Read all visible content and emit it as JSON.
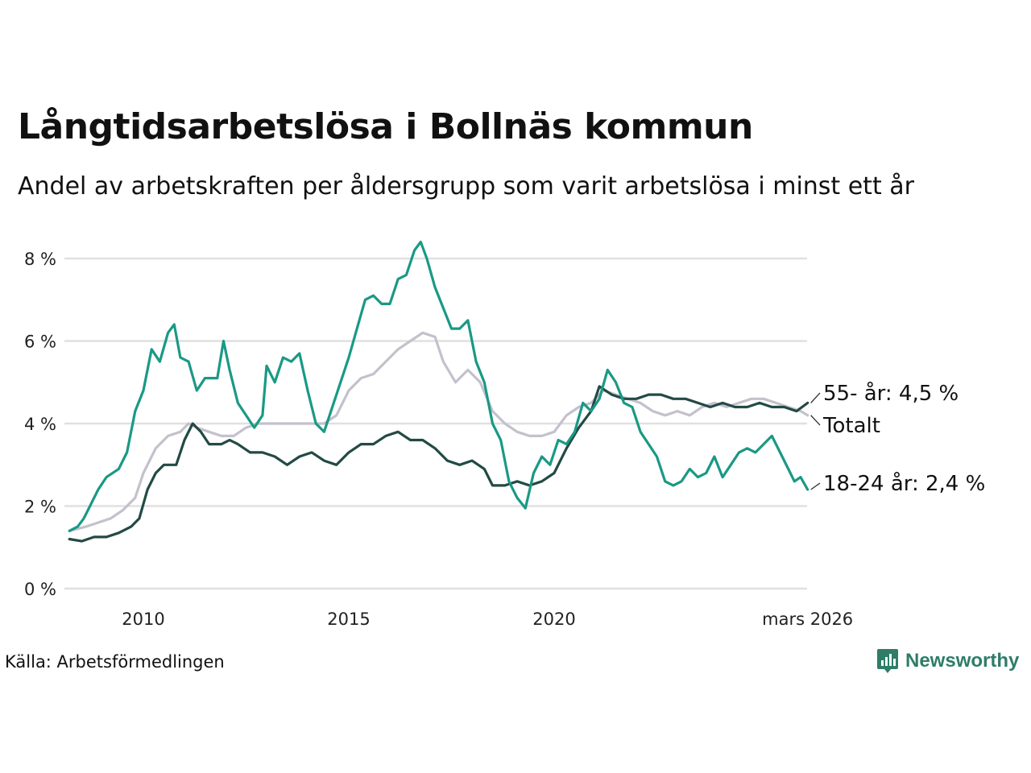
{
  "header": {
    "title": "Långtidsarbetslösa i Bollnäs kommun",
    "subtitle": "Andel av arbetskraften per åldersgrupp som varit arbetslösa i minst ett år"
  },
  "footer": {
    "source": "Källa: Arbetsförmedlingen",
    "brand": "Newsworthy"
  },
  "chart_data": {
    "type": "line",
    "title": "Långtidsarbetslösa i Bollnäs kommun",
    "subtitle": "Andel av arbetskraften per åldersgrupp som varit arbetslösa i minst ett år",
    "x_range": [
      2008.2,
      2026.2
    ],
    "ylim": [
      0,
      8.5
    ],
    "y_ticks": [
      0,
      2,
      4,
      6,
      8
    ],
    "y_tick_labels": [
      "0 %",
      "2 %",
      "4 %",
      "6 %",
      "8 %"
    ],
    "x_ticks": [
      2010,
      2015,
      2020,
      2026.17
    ],
    "x_tick_labels": [
      "2010",
      "2015",
      "2020",
      "mars 2026"
    ],
    "grid": true,
    "series": [
      {
        "name": "Totalt",
        "color": "#c4c1cd",
        "end_label": "Totalt",
        "points": [
          [
            2008.2,
            1.4
          ],
          [
            2008.6,
            1.5
          ],
          [
            2008.9,
            1.6
          ],
          [
            2009.2,
            1.7
          ],
          [
            2009.5,
            1.9
          ],
          [
            2009.8,
            2.2
          ],
          [
            2010.0,
            2.8
          ],
          [
            2010.3,
            3.4
          ],
          [
            2010.6,
            3.7
          ],
          [
            2010.9,
            3.8
          ],
          [
            2011.1,
            4.0
          ],
          [
            2011.3,
            3.9
          ],
          [
            2011.6,
            3.8
          ],
          [
            2011.9,
            3.7
          ],
          [
            2012.2,
            3.7
          ],
          [
            2012.5,
            3.9
          ],
          [
            2012.8,
            4.0
          ],
          [
            2013.1,
            4.0
          ],
          [
            2013.4,
            4.0
          ],
          [
            2013.7,
            4.0
          ],
          [
            2014.0,
            4.0
          ],
          [
            2014.4,
            4.0
          ],
          [
            2014.7,
            4.2
          ],
          [
            2015.0,
            4.8
          ],
          [
            2015.3,
            5.1
          ],
          [
            2015.6,
            5.2
          ],
          [
            2015.9,
            5.5
          ],
          [
            2016.2,
            5.8
          ],
          [
            2016.5,
            6.0
          ],
          [
            2016.8,
            6.2
          ],
          [
            2017.1,
            6.1
          ],
          [
            2017.3,
            5.5
          ],
          [
            2017.6,
            5.0
          ],
          [
            2017.9,
            5.3
          ],
          [
            2018.2,
            5.0
          ],
          [
            2018.5,
            4.3
          ],
          [
            2018.8,
            4.0
          ],
          [
            2019.1,
            3.8
          ],
          [
            2019.4,
            3.7
          ],
          [
            2019.7,
            3.7
          ],
          [
            2020.0,
            3.8
          ],
          [
            2020.3,
            4.2
          ],
          [
            2020.6,
            4.4
          ],
          [
            2020.9,
            4.5
          ],
          [
            2021.2,
            4.8
          ],
          [
            2021.5,
            4.7
          ],
          [
            2021.8,
            4.6
          ],
          [
            2022.1,
            4.5
          ],
          [
            2022.4,
            4.3
          ],
          [
            2022.7,
            4.2
          ],
          [
            2023.0,
            4.3
          ],
          [
            2023.3,
            4.2
          ],
          [
            2023.6,
            4.4
          ],
          [
            2023.9,
            4.5
          ],
          [
            2024.2,
            4.4
          ],
          [
            2024.5,
            4.5
          ],
          [
            2024.8,
            4.6
          ],
          [
            2025.1,
            4.6
          ],
          [
            2025.4,
            4.5
          ],
          [
            2025.7,
            4.4
          ],
          [
            2026.0,
            4.3
          ],
          [
            2026.17,
            4.2
          ]
        ]
      },
      {
        "name": "55- år",
        "color": "#234a45",
        "end_label": "55- år: 4,5 %",
        "points": [
          [
            2008.2,
            1.2
          ],
          [
            2008.5,
            1.15
          ],
          [
            2008.8,
            1.25
          ],
          [
            2009.1,
            1.25
          ],
          [
            2009.4,
            1.35
          ],
          [
            2009.7,
            1.5
          ],
          [
            2009.9,
            1.7
          ],
          [
            2010.1,
            2.4
          ],
          [
            2010.3,
            2.8
          ],
          [
            2010.5,
            3.0
          ],
          [
            2010.8,
            3.0
          ],
          [
            2011.0,
            3.6
          ],
          [
            2011.2,
            4.0
          ],
          [
            2011.4,
            3.8
          ],
          [
            2011.6,
            3.5
          ],
          [
            2011.9,
            3.5
          ],
          [
            2012.1,
            3.6
          ],
          [
            2012.3,
            3.5
          ],
          [
            2012.6,
            3.3
          ],
          [
            2012.9,
            3.3
          ],
          [
            2013.2,
            3.2
          ],
          [
            2013.5,
            3.0
          ],
          [
            2013.8,
            3.2
          ],
          [
            2014.1,
            3.3
          ],
          [
            2014.4,
            3.1
          ],
          [
            2014.7,
            3.0
          ],
          [
            2015.0,
            3.3
          ],
          [
            2015.3,
            3.5
          ],
          [
            2015.6,
            3.5
          ],
          [
            2015.9,
            3.7
          ],
          [
            2016.2,
            3.8
          ],
          [
            2016.5,
            3.6
          ],
          [
            2016.8,
            3.6
          ],
          [
            2017.1,
            3.4
          ],
          [
            2017.4,
            3.1
          ],
          [
            2017.7,
            3.0
          ],
          [
            2018.0,
            3.1
          ],
          [
            2018.3,
            2.9
          ],
          [
            2018.5,
            2.5
          ],
          [
            2018.8,
            2.5
          ],
          [
            2019.1,
            2.6
          ],
          [
            2019.4,
            2.5
          ],
          [
            2019.7,
            2.6
          ],
          [
            2020.0,
            2.8
          ],
          [
            2020.3,
            3.4
          ],
          [
            2020.6,
            3.9
          ],
          [
            2020.9,
            4.3
          ],
          [
            2021.1,
            4.9
          ],
          [
            2021.4,
            4.7
          ],
          [
            2021.7,
            4.6
          ],
          [
            2022.0,
            4.6
          ],
          [
            2022.3,
            4.7
          ],
          [
            2022.6,
            4.7
          ],
          [
            2022.9,
            4.6
          ],
          [
            2023.2,
            4.6
          ],
          [
            2023.5,
            4.5
          ],
          [
            2023.8,
            4.4
          ],
          [
            2024.1,
            4.5
          ],
          [
            2024.4,
            4.4
          ],
          [
            2024.7,
            4.4
          ],
          [
            2025.0,
            4.5
          ],
          [
            2025.3,
            4.4
          ],
          [
            2025.6,
            4.4
          ],
          [
            2025.9,
            4.3
          ],
          [
            2026.17,
            4.5
          ]
        ]
      },
      {
        "name": "18-24 år",
        "color": "#1a9985",
        "end_label": "18-24 år: 2,4 %",
        "points": [
          [
            2008.2,
            1.4
          ],
          [
            2008.4,
            1.5
          ],
          [
            2008.55,
            1.7
          ],
          [
            2008.7,
            2.0
          ],
          [
            2008.9,
            2.4
          ],
          [
            2009.1,
            2.7
          ],
          [
            2009.4,
            2.9
          ],
          [
            2009.6,
            3.3
          ],
          [
            2009.8,
            4.3
          ],
          [
            2010.0,
            4.8
          ],
          [
            2010.2,
            5.8
          ],
          [
            2010.4,
            5.5
          ],
          [
            2010.6,
            6.2
          ],
          [
            2010.75,
            6.4
          ],
          [
            2010.9,
            5.6
          ],
          [
            2011.1,
            5.5
          ],
          [
            2011.3,
            4.8
          ],
          [
            2011.5,
            5.1
          ],
          [
            2011.8,
            5.1
          ],
          [
            2011.95,
            6.0
          ],
          [
            2012.1,
            5.3
          ],
          [
            2012.3,
            4.5
          ],
          [
            2012.5,
            4.2
          ],
          [
            2012.7,
            3.9
          ],
          [
            2012.9,
            4.2
          ],
          [
            2013.0,
            5.4
          ],
          [
            2013.2,
            5.0
          ],
          [
            2013.4,
            5.6
          ],
          [
            2013.6,
            5.5
          ],
          [
            2013.8,
            5.7
          ],
          [
            2014.0,
            4.8
          ],
          [
            2014.2,
            4.0
          ],
          [
            2014.4,
            3.8
          ],
          [
            2014.6,
            4.4
          ],
          [
            2014.8,
            5.0
          ],
          [
            2015.0,
            5.6
          ],
          [
            2015.2,
            6.3
          ],
          [
            2015.4,
            7.0
          ],
          [
            2015.6,
            7.1
          ],
          [
            2015.8,
            6.9
          ],
          [
            2016.0,
            6.9
          ],
          [
            2016.2,
            7.5
          ],
          [
            2016.4,
            7.6
          ],
          [
            2016.6,
            8.2
          ],
          [
            2016.75,
            8.4
          ],
          [
            2016.9,
            8.0
          ],
          [
            2017.1,
            7.3
          ],
          [
            2017.3,
            6.8
          ],
          [
            2017.5,
            6.3
          ],
          [
            2017.7,
            6.3
          ],
          [
            2017.9,
            6.5
          ],
          [
            2018.1,
            5.5
          ],
          [
            2018.3,
            5.0
          ],
          [
            2018.5,
            4.0
          ],
          [
            2018.7,
            3.6
          ],
          [
            2018.9,
            2.6
          ],
          [
            2019.1,
            2.2
          ],
          [
            2019.3,
            1.95
          ],
          [
            2019.5,
            2.8
          ],
          [
            2019.7,
            3.2
          ],
          [
            2019.9,
            3.0
          ],
          [
            2020.1,
            3.6
          ],
          [
            2020.3,
            3.5
          ],
          [
            2020.5,
            3.8
          ],
          [
            2020.7,
            4.5
          ],
          [
            2020.9,
            4.3
          ],
          [
            2021.1,
            4.6
          ],
          [
            2021.3,
            5.3
          ],
          [
            2021.5,
            5.0
          ],
          [
            2021.7,
            4.5
          ],
          [
            2021.9,
            4.4
          ],
          [
            2022.1,
            3.8
          ],
          [
            2022.3,
            3.5
          ],
          [
            2022.5,
            3.2
          ],
          [
            2022.7,
            2.6
          ],
          [
            2022.9,
            2.5
          ],
          [
            2023.1,
            2.6
          ],
          [
            2023.3,
            2.9
          ],
          [
            2023.5,
            2.7
          ],
          [
            2023.7,
            2.8
          ],
          [
            2023.9,
            3.2
          ],
          [
            2024.1,
            2.7
          ],
          [
            2024.3,
            3.0
          ],
          [
            2024.5,
            3.3
          ],
          [
            2024.7,
            3.4
          ],
          [
            2024.9,
            3.3
          ],
          [
            2025.1,
            3.5
          ],
          [
            2025.3,
            3.7
          ],
          [
            2025.5,
            3.3
          ],
          [
            2025.7,
            2.9
          ],
          [
            2025.85,
            2.6
          ],
          [
            2026.0,
            2.7
          ],
          [
            2026.17,
            2.4
          ]
        ]
      }
    ]
  }
}
